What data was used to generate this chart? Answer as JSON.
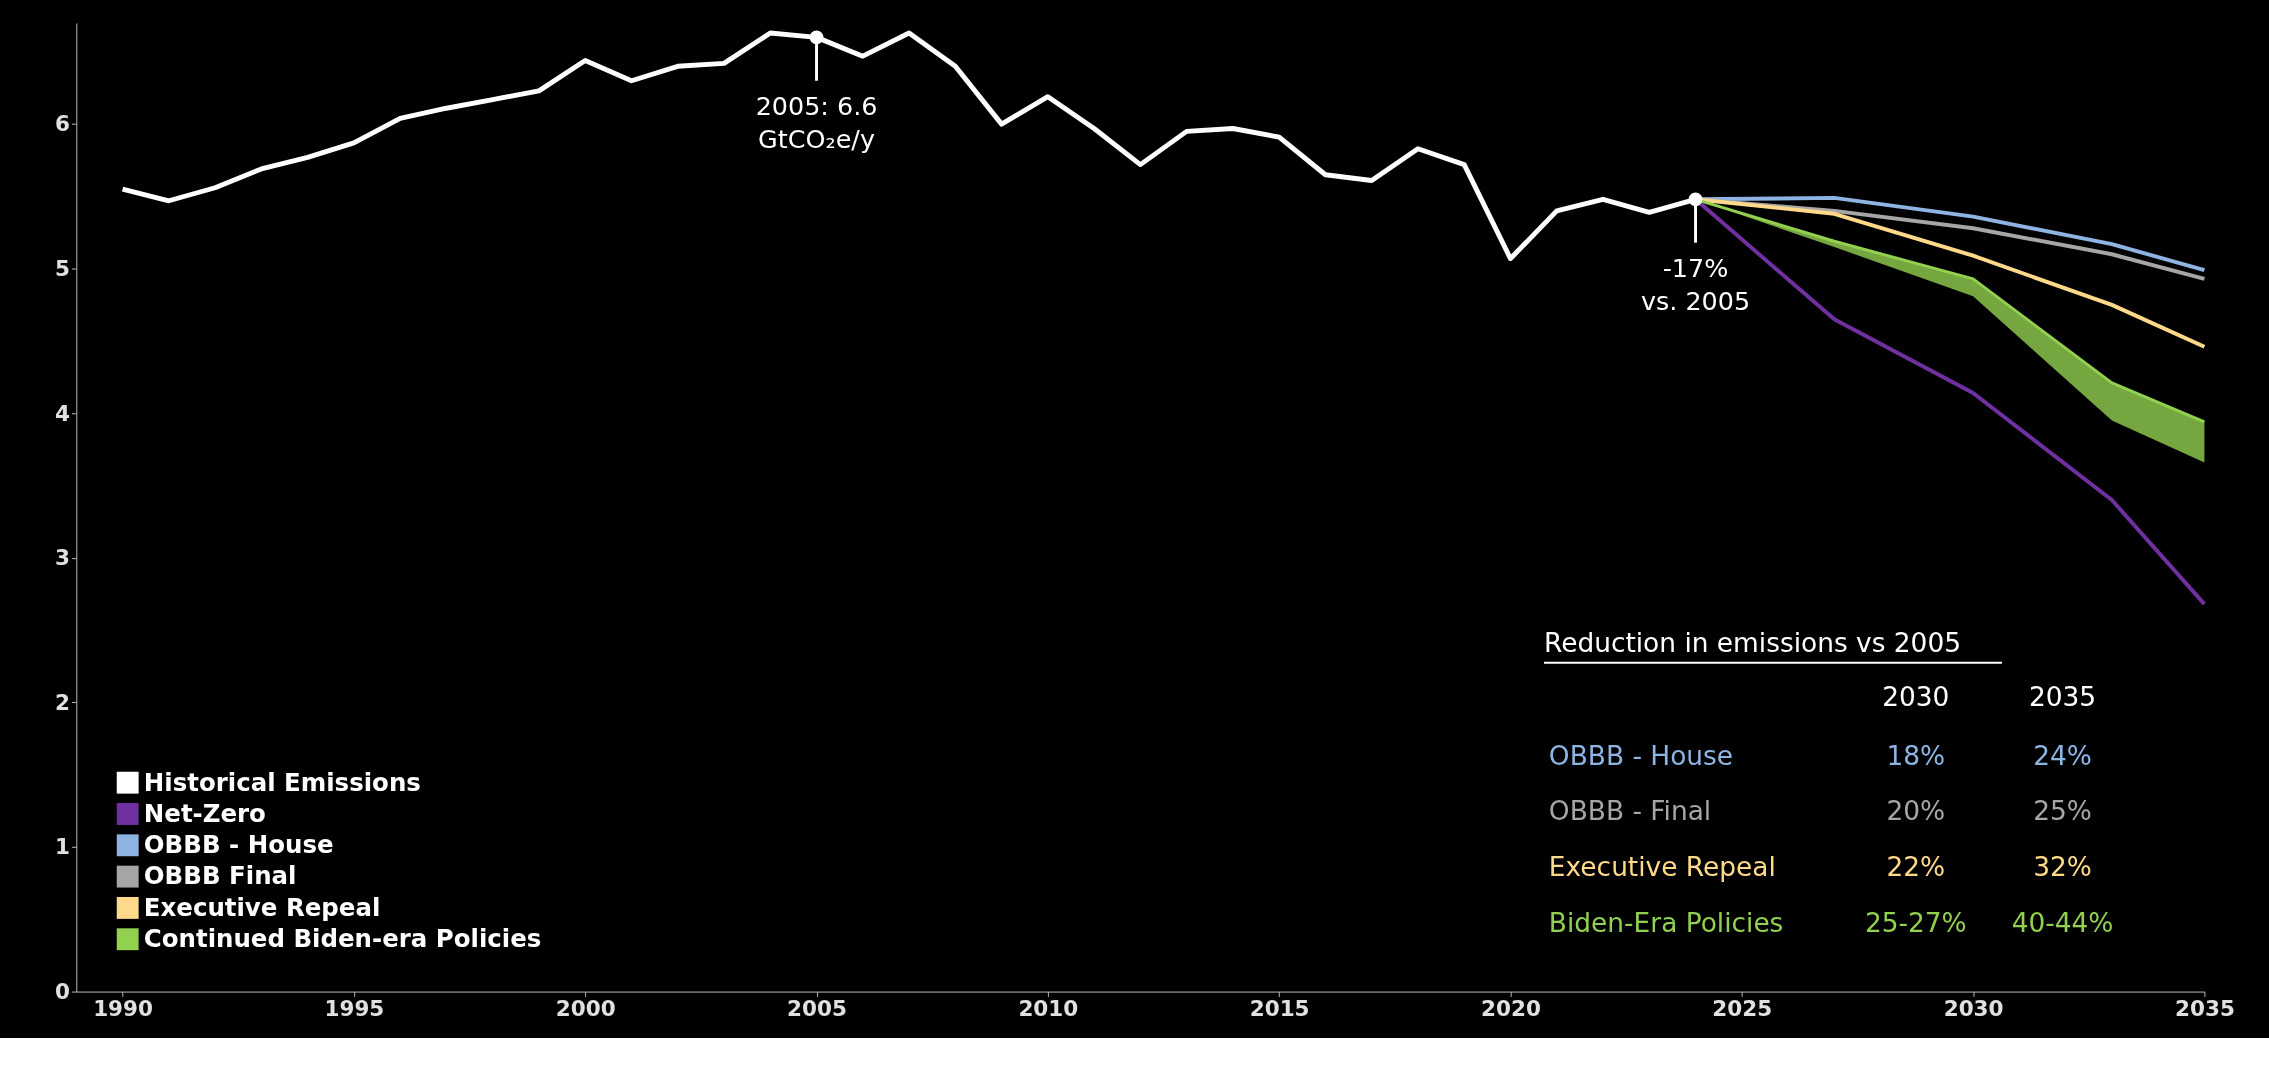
{
  "chart_data": {
    "type": "line",
    "x": [
      1990,
      1991,
      1992,
      1993,
      1994,
      1995,
      1996,
      1997,
      1998,
      1999,
      2000,
      2001,
      2002,
      2003,
      2004,
      2005,
      2006,
      2007,
      2008,
      2009,
      2010,
      2011,
      2012,
      2013,
      2014,
      2015,
      2016,
      2017,
      2018,
      2019,
      2020,
      2021,
      2022,
      2023,
      2024
    ],
    "series": [
      {
        "name": "Historical Emissions",
        "color": "#ffffff",
        "values": [
          5.55,
          5.47,
          5.56,
          5.69,
          5.77,
          5.87,
          6.04,
          6.11,
          6.17,
          6.23,
          6.44,
          6.3,
          6.4,
          6.42,
          6.63,
          6.6,
          6.47,
          6.63,
          6.4,
          6.0,
          6.19,
          5.97,
          5.72,
          5.95,
          5.97,
          5.91,
          5.65,
          5.61,
          5.83,
          5.72,
          5.07,
          5.4,
          5.48,
          5.39,
          5.48
        ]
      },
      {
        "name": "Net-Zero",
        "color": "#7030a0",
        "x": [
          2024,
          2027,
          2030,
          2033,
          2035
        ],
        "values": [
          5.48,
          4.65,
          4.14,
          3.4,
          2.68
        ]
      },
      {
        "name": "OBBB - House",
        "color": "#8eb4e3",
        "x": [
          2024,
          2027,
          2030,
          2033,
          2035
        ],
        "values": [
          5.48,
          5.49,
          5.36,
          5.17,
          4.99
        ]
      },
      {
        "name": "OBBB Final",
        "color": "#a6a6a6",
        "x": [
          2024,
          2027,
          2030,
          2033,
          2035
        ],
        "values": [
          5.48,
          5.4,
          5.28,
          5.1,
          4.93
        ]
      },
      {
        "name": "Executive Repeal",
        "color": "#ffd98a",
        "x": [
          2024,
          2027,
          2030,
          2033,
          2035
        ],
        "values": [
          5.48,
          5.38,
          5.09,
          4.75,
          4.46
        ]
      },
      {
        "name": "Continued Biden-era Policies",
        "color": "#92d050",
        "x": [
          2024,
          2027,
          2030,
          2033,
          2035
        ],
        "values": [
          5.48,
          5.19,
          4.93,
          4.21,
          3.94
        ],
        "lower": [
          5.48,
          5.15,
          4.81,
          3.95,
          3.66
        ],
        "upper": [
          5.48,
          5.19,
          4.93,
          4.21,
          3.94
        ]
      }
    ],
    "xlim": [
      1989,
      2035
    ],
    "xticks": [
      1990,
      1995,
      2000,
      2005,
      2010,
      2015,
      2020,
      2025,
      2030,
      2035
    ],
    "ylim": [
      0,
      6.7
    ],
    "yticks": [
      0,
      1,
      2,
      3,
      4,
      5,
      6
    ],
    "grid": false,
    "legend": "bottom left",
    "annotations": [
      {
        "text": "2005: 6.6 GtCO₂e/y",
        "x": 2005,
        "y": 6.6
      },
      {
        "text": "-17% vs. 2005",
        "x": 2024,
        "y": 5.48
      },
      "Reduction in emissions vs 2005",
      "2030",
      "2035",
      "OBBB - House",
      "18%",
      "24%",
      "OBBB - Final",
      "20%",
      "25%",
      "Executive Repeal",
      "22%",
      "32%",
      "Biden-Era Policies",
      "25-27%",
      "40-44%"
    ]
  }
}
